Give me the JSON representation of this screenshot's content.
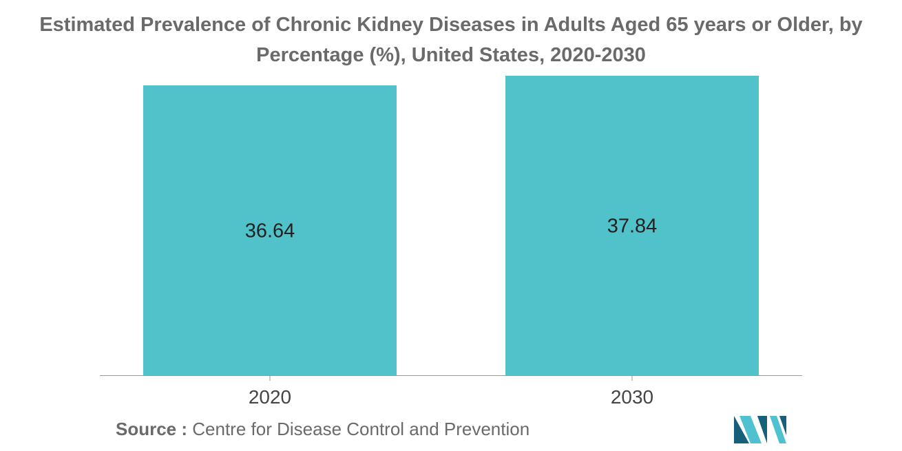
{
  "chart_data": {
    "type": "bar",
    "title_lines": [
      "Estimated Prevalence of Chronic Kidney Diseases in Adults Aged 65 years or Older, by",
      "Percentage (%), United States, 2020-2030"
    ],
    "categories": [
      "2020",
      "2030"
    ],
    "values": [
      36.64,
      37.84
    ],
    "data_labels": [
      "36.64",
      "37.84"
    ],
    "xlabel": "",
    "ylabel": "",
    "ylim": [
      0,
      37.84
    ],
    "grid": false,
    "legend": "none",
    "bar_color": "#51c2c9"
  },
  "source": {
    "label": "Source :",
    "text": "Centre for Disease Control and Prevention"
  },
  "colors": {
    "title": "#6a6a6a",
    "axis": "#999999",
    "logo_dark": "#17607a",
    "logo_light": "#4fc1cf"
  }
}
